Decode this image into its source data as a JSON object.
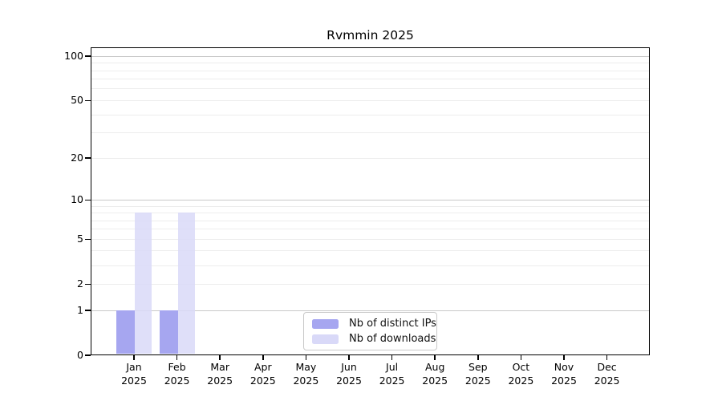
{
  "chart_data": {
    "type": "bar",
    "title": "Rvmmin 2025",
    "categories": [
      "Jan",
      "Feb",
      "Mar",
      "Apr",
      "May",
      "Jun",
      "Jul",
      "Aug",
      "Sep",
      "Oct",
      "Nov",
      "Dec"
    ],
    "year_label": "2025",
    "series": [
      {
        "name": "Nb of distinct IPs",
        "color": "#a6a6f0",
        "alpha": 1,
        "values": [
          1,
          1,
          0,
          0,
          0,
          0,
          0,
          0,
          0,
          0,
          0,
          0
        ]
      },
      {
        "name": "Nb of downloads",
        "color": "#d9d9f8",
        "alpha": 0.85,
        "values": [
          8,
          8,
          0,
          0,
          0,
          0,
          0,
          0,
          0,
          0,
          0,
          0
        ]
      }
    ],
    "xlabel": "",
    "ylabel": "",
    "yscale": "log10(1+value)",
    "yticks": [
      0,
      1,
      2,
      5,
      10,
      20,
      50,
      100
    ],
    "ylim": [
      0,
      113
    ],
    "grid": {
      "orientation": "horizontal",
      "major_values": [
        1,
        10,
        100
      ],
      "minor_values": [
        2,
        3,
        4,
        5,
        6,
        7,
        8,
        9,
        20,
        30,
        40,
        50,
        60,
        70,
        80,
        90
      ],
      "major_color": "#c8c8c8",
      "minor_color": "#ededed"
    },
    "legend_position": "bottom-center",
    "colors": {
      "axis": "#000000",
      "text": "#000000",
      "background": "#ffffff",
      "legend_border": "#c9c9c9"
    }
  }
}
